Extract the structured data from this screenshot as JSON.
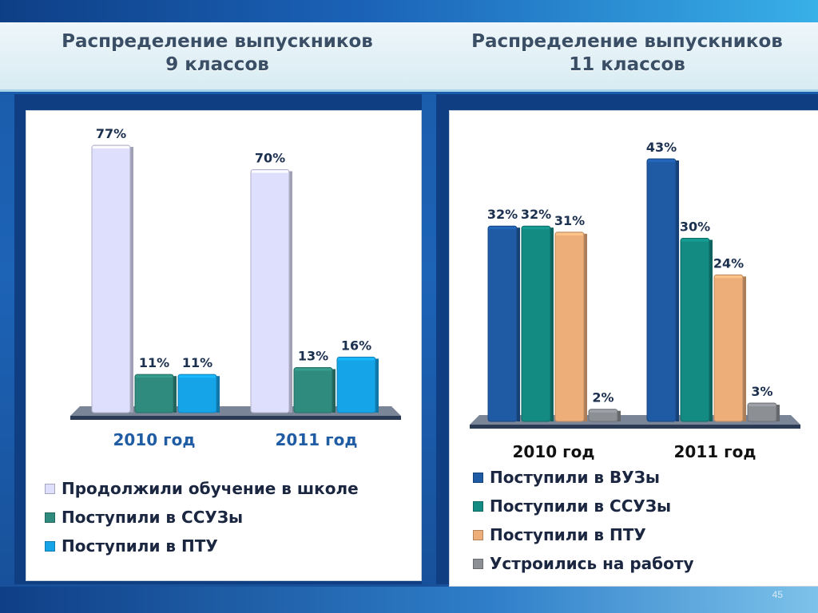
{
  "slide": {
    "page_number": "45",
    "left_title_line1": "Распределение выпускников",
    "left_title_line2": "9 классов",
    "right_title_line1": "Распределение выпускников",
    "right_title_line2": "11 классов"
  },
  "chart_data": [
    {
      "type": "bar",
      "title": "Распределение выпускников 9 классов",
      "categories": [
        "2010 год",
        "2011 год"
      ],
      "series": [
        {
          "name": "Продолжили обучение в школе",
          "values": [
            77,
            70
          ],
          "labels": [
            "77%",
            "70%"
          ],
          "color": "#dedffd"
        },
        {
          "name": "Поступили в ССУЗы",
          "values": [
            11,
            13
          ],
          "labels": [
            "11%",
            "13%"
          ],
          "color": "#2f8b7e"
        },
        {
          "name": "Поступили в ПТУ",
          "values": [
            11,
            16
          ],
          "labels": [
            "11%",
            "16%"
          ],
          "color": "#16a4e8"
        }
      ],
      "ylim": [
        0,
        80
      ],
      "grid": false,
      "legend_position": "bottom",
      "category_label_color": "#1f5ca3"
    },
    {
      "type": "bar",
      "title": "Распределение выпускников 11 классов",
      "categories": [
        "2010 год",
        "2011 год"
      ],
      "series": [
        {
          "name": "Поступили в ВУЗы",
          "values": [
            32,
            43
          ],
          "labels": [
            "32%",
            "43%"
          ],
          "color": "#1f5aa5"
        },
        {
          "name": "Поступили в ССУЗы",
          "values": [
            32,
            30
          ],
          "labels": [
            "32%",
            "30%"
          ],
          "color": "#138a82"
        },
        {
          "name": "Поступили в ПТУ",
          "values": [
            31,
            24
          ],
          "labels": [
            "31%",
            "24%"
          ],
          "color": "#eeae7a"
        },
        {
          "name": "Устроились на работу",
          "values": [
            2,
            3
          ],
          "labels": [
            "2%",
            "3%"
          ],
          "color": "#8c8f94"
        }
      ],
      "ylim": [
        0,
        50
      ],
      "grid": false,
      "legend_position": "bottom",
      "category_label_color": "#111111"
    }
  ]
}
